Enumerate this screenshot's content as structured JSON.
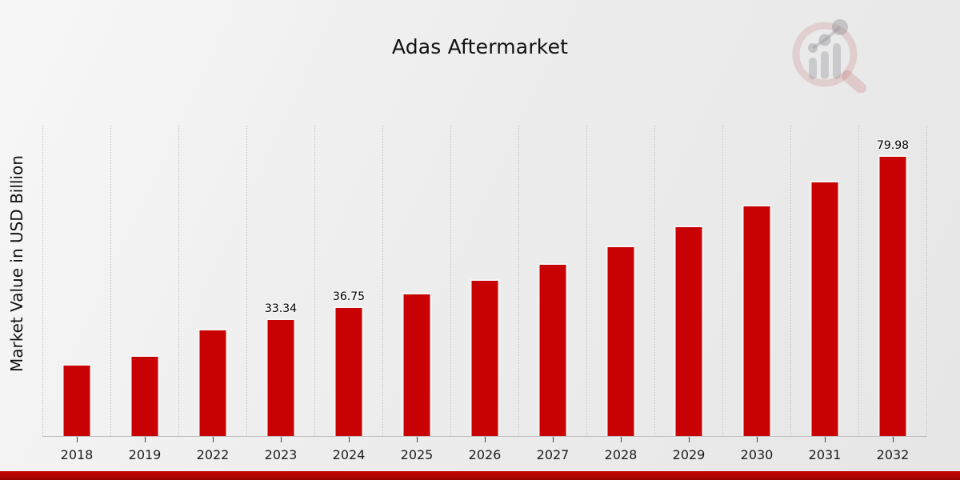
{
  "chart_data": {
    "type": "bar",
    "title": "Adas Aftermarket",
    "xlabel": "",
    "ylabel": "Market Value in USD Billion",
    "categories": [
      "2018",
      "2019",
      "2022",
      "2023",
      "2024",
      "2025",
      "2026",
      "2027",
      "2028",
      "2029",
      "2030",
      "2031",
      "2032"
    ],
    "values": [
      20.2,
      22.7,
      30.3,
      33.34,
      36.75,
      40.5,
      44.6,
      49.1,
      54.2,
      59.8,
      65.9,
      72.6,
      79.98
    ],
    "value_labels": [
      "",
      "",
      "",
      "33.34",
      "36.75",
      "",
      "",
      "",
      "",
      "",
      "",
      "",
      "79.98"
    ],
    "ylim": [
      0,
      89
    ],
    "grid": "vertical-dotted",
    "legend": "none",
    "bar_color": "#c80202"
  },
  "branding": {
    "logo_icon": "magnifier-bar-chart-watermark",
    "stripe_color": "#b00400"
  }
}
